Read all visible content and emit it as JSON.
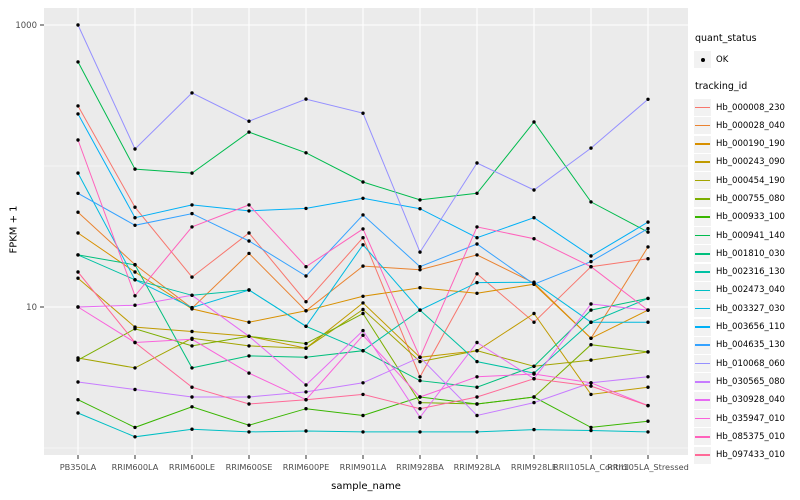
{
  "figure": {
    "kind": "ggplot-line-chart",
    "background": "#FFFFFF",
    "panel_background": "#EBEBEB",
    "grid_color": "#FFFFFF",
    "tick_label_color": "#4D4D4D",
    "point_color": "#000000",
    "legend_key_background": "#F2F2F2"
  },
  "legend": {
    "quant_status": {
      "title": "quant_status",
      "items": [
        {
          "label": "OK",
          "symbol": "black-point"
        }
      ]
    },
    "tracking": {
      "title": "tracking_id"
    }
  },
  "chart_data": {
    "type": "line",
    "title": "",
    "xlabel": "sample_name",
    "ylabel": "FPKM + 1",
    "y_scale": "log10",
    "ylim": [
      1,
      1100
    ],
    "y_major_ticks": [
      {
        "value": 10,
        "label": "10"
      },
      {
        "value": 1000,
        "label": "1000"
      }
    ],
    "y_minor_gridlines": [
      1,
      100
    ],
    "grid": true,
    "legend_position": "right",
    "marker": "small-black-dot",
    "quant_status_all": "OK",
    "categories": [
      "PB350LA",
      "RRIM600LA",
      "RRIM600LE",
      "RRIM600SE",
      "RRIM600PE",
      "RRIM901LA",
      "RRIM928BA",
      "RRIM928LA",
      "RRIM928LE",
      "RRII105LA_Control",
      "RRII105LA_Stressed"
    ],
    "series": [
      {
        "name": "Hb_000008_230",
        "color": "#F8766D",
        "values": [
          267,
          51,
          16.3,
          33.5,
          10.9,
          31,
          3.2,
          17.2,
          7.8,
          19.3,
          22
        ]
      },
      {
        "name": "Hb_000028_040",
        "color": "#EA8331",
        "values": [
          47,
          20,
          9.8,
          24,
          9.4,
          19.5,
          18.4,
          23.4,
          14.8,
          6,
          26.7
        ]
      },
      {
        "name": "Hb_000190_190",
        "color": "#D89000",
        "values": [
          33.5,
          17.7,
          9.7,
          7.8,
          9.4,
          11.9,
          13.7,
          12.5,
          14.5,
          6,
          9.5
        ]
      },
      {
        "name": "Hb_000243_090",
        "color": "#C09B00",
        "values": [
          16,
          7.2,
          6.7,
          6.2,
          5.1,
          10.7,
          4.4,
          4.9,
          9,
          2.4,
          2.7
        ]
      },
      {
        "name": "Hb_000454_190",
        "color": "#A3A500",
        "values": [
          4.35,
          3.7,
          6,
          5.3,
          5.1,
          9.6,
          4.1,
          4.9,
          3.8,
          4.2,
          4.8
        ]
      },
      {
        "name": "Hb_000755_080",
        "color": "#7CAE00",
        "values": [
          4.2,
          7,
          5.3,
          6.2,
          5.5,
          9,
          2.1,
          2.05,
          2.3,
          5.4,
          4.8
        ]
      },
      {
        "name": "Hb_000933_100",
        "color": "#39B600",
        "values": [
          2.2,
          1.4,
          1.96,
          1.45,
          1.9,
          1.7,
          2.3,
          2.05,
          2.3,
          1.4,
          1.55
        ]
      },
      {
        "name": "Hb_000941_140",
        "color": "#00BB4E",
        "values": [
          547,
          95,
          89,
          174,
          124,
          77,
          57.5,
          64,
          205,
          55.6,
          34
        ]
      },
      {
        "name": "Hb_001810_030",
        "color": "#00BF7D",
        "values": [
          23.4,
          19.9,
          3.7,
          4.5,
          4.4,
          4.9,
          3,
          2.7,
          3.8,
          9.5,
          11.5
        ]
      },
      {
        "name": "Hb_002316_130",
        "color": "#00C1A3",
        "values": [
          23.4,
          15.6,
          12.1,
          13.2,
          7.3,
          4.9,
          9.5,
          4.1,
          3.4,
          7.8,
          11.5
        ]
      },
      {
        "name": "Hb_002473_040",
        "color": "#00BFC4",
        "values": [
          1.77,
          1.2,
          1.36,
          1.3,
          1.32,
          1.3,
          1.3,
          1.3,
          1.35,
          1.33,
          1.3
        ]
      },
      {
        "name": "Hb_003327_030",
        "color": "#00BAE0",
        "values": [
          89,
          15.6,
          9.9,
          13.2,
          7.3,
          27.6,
          9.5,
          14.9,
          15,
          7.8,
          7.8
        ]
      },
      {
        "name": "Hb_003656_110",
        "color": "#00B0F6",
        "values": [
          234,
          43,
          53,
          48,
          50,
          59,
          49.8,
          31,
          43,
          23,
          40
        ]
      },
      {
        "name": "Hb_004635_130",
        "color": "#35A2FF",
        "values": [
          64,
          38,
          46,
          29.4,
          16.6,
          45,
          19.3,
          28,
          14.5,
          21,
          36
        ]
      },
      {
        "name": "Hb_010068_060",
        "color": "#9590FF",
        "values": [
          1000,
          132,
          330,
          208,
          298,
          237,
          24.5,
          105,
          67.6,
          134,
          297
        ]
      },
      {
        "name": "Hb_030565_080",
        "color": "#C77CFF",
        "values": [
          2.94,
          2.6,
          2.3,
          2.3,
          2.5,
          2.9,
          4.4,
          1.7,
          2.1,
          2.9,
          3.2
        ]
      },
      {
        "name": "Hb_030928_040",
        "color": "#E76BF3",
        "values": [
          10,
          10.3,
          12.1,
          6.2,
          2.8,
          6.8,
          1.65,
          5.6,
          3.1,
          10.5,
          9.5
        ]
      },
      {
        "name": "Hb_035947_010",
        "color": "#FA62DB",
        "values": [
          10,
          5.6,
          5.9,
          3.4,
          2.2,
          6.3,
          2.3,
          3.2,
          3.35,
          2.9,
          2
        ]
      },
      {
        "name": "Hb_085375_010",
        "color": "#FF62BC",
        "values": [
          153,
          12,
          37,
          53,
          19.3,
          35.8,
          4.4,
          37,
          30.5,
          19.3,
          9.5
        ]
      },
      {
        "name": "Hb_097433_010",
        "color": "#FF6A98",
        "values": [
          17.7,
          5.6,
          2.7,
          2.05,
          2.2,
          2.4,
          1.9,
          2.3,
          3.1,
          2.75,
          2
        ]
      }
    ]
  }
}
